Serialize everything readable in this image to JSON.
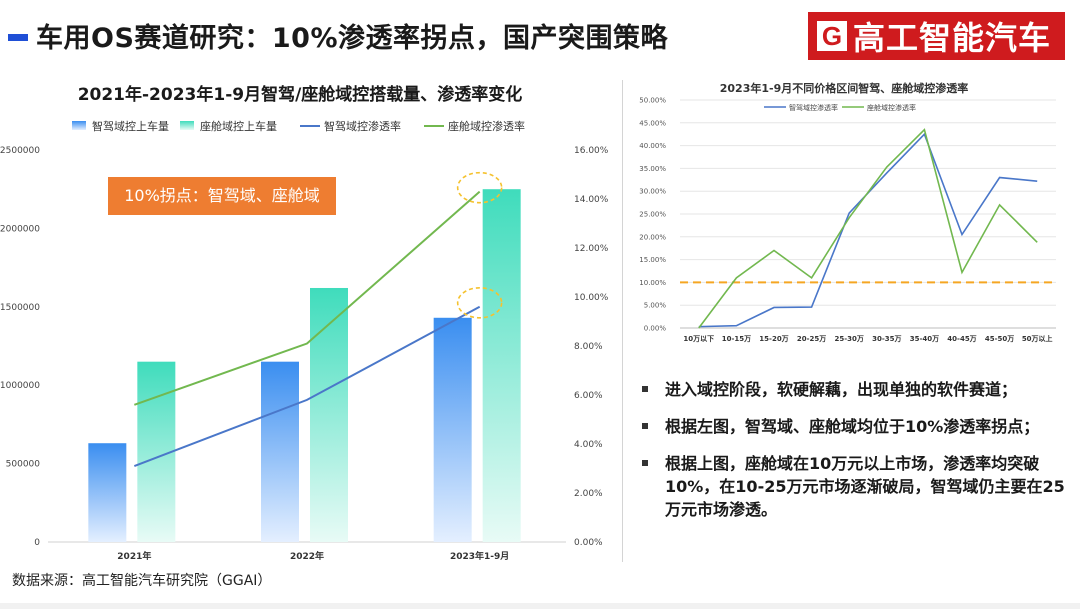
{
  "page": {
    "title": "车用OS赛道研究：10%渗透率拐点，国产突围策略",
    "logo_letter": "G",
    "logo_text": "高工智能汽车",
    "source": "数据来源：高工智能汽车研究院（GGAI）"
  },
  "annotation": {
    "text": "10%拐点：智驾域、座舱域"
  },
  "bullets": [
    "进入域控阶段，软硬解藕，出现单独的软件赛道；",
    "根据左图，智驾域、座舱域均位于10%渗透率拐点；",
    "根据上图，座舱域在10万元以上市场，渗透率均突破10%，在10-25万元市场逐渐破局，智驾域仍主要在25万元市场渗透。"
  ],
  "colors": {
    "bar_blue": "#3a8ef0",
    "bar_teal": "#3fdcbc",
    "line_blue": "#4a77c9",
    "line_green": "#72b84f",
    "highlight": "#f5c22f",
    "threshold": "#f5a623",
    "annotation": "#ee7d31",
    "logo": "#cf1b1e"
  },
  "chart_data": [
    {
      "type": "bar",
      "title": "2021年-2023年1-9月智驾/座舱域控搭载量、渗透率变化",
      "categories": [
        "2021年",
        "2022年",
        "2023年1-9月"
      ],
      "series": [
        {
          "name": "智驾域控上车量",
          "kind": "bar",
          "axis": "left",
          "values": [
            630000,
            1150000,
            1430000
          ]
        },
        {
          "name": "座舱域控上车量",
          "kind": "bar",
          "axis": "left",
          "values": [
            1150000,
            1620000,
            2250000
          ]
        },
        {
          "name": "智驾域控渗透率",
          "kind": "line",
          "axis": "right",
          "values": [
            3.1,
            5.8,
            9.6
          ]
        },
        {
          "name": "座舱域控渗透率",
          "kind": "line",
          "axis": "right",
          "values": [
            5.6,
            8.1,
            14.3
          ]
        }
      ],
      "ylim": [
        0,
        2500000
      ],
      "yticks": [
        "0",
        "500000",
        "1000000",
        "1500000",
        "2000000",
        "2500000"
      ],
      "y2lim": [
        0,
        16
      ],
      "y2ticks": [
        "0.00%",
        "2.00%",
        "4.00%",
        "6.00%",
        "8.00%",
        "10.00%",
        "12.00%",
        "14.00%",
        "16.00%"
      ],
      "legend": "top",
      "grid": false,
      "highlighted_points": [
        "智驾域控渗透率: 2023年1-9月",
        "座舱域控渗透率: 2023年1-9月"
      ]
    },
    {
      "type": "line",
      "title": "2023年1-9月不同价格区间智驾、座舱域控渗透率",
      "categories": [
        "10万以下",
        "10-15万",
        "15-20万",
        "20-25万",
        "25-30万",
        "30-35万",
        "35-40万",
        "40-45万",
        "45-50万",
        "50万以上"
      ],
      "series": [
        {
          "name": "智驾域控渗透率",
          "values": [
            0.3,
            0.5,
            4.5,
            4.6,
            25.2,
            34.0,
            42.5,
            20.5,
            33.0,
            32.2
          ]
        },
        {
          "name": "座舱域控渗透率",
          "values": [
            0.0,
            11.0,
            17.0,
            11.0,
            24.2,
            35.3,
            43.5,
            12.2,
            27.0,
            18.8
          ]
        }
      ],
      "ylim": [
        0,
        50
      ],
      "yticks": [
        "0.00%",
        "5.00%",
        "10.00%",
        "15.00%",
        "20.00%",
        "25.00%",
        "30.00%",
        "35.00%",
        "40.00%",
        "45.00%",
        "50.00%"
      ],
      "reference_line": 10,
      "legend": "top",
      "grid": true
    }
  ]
}
